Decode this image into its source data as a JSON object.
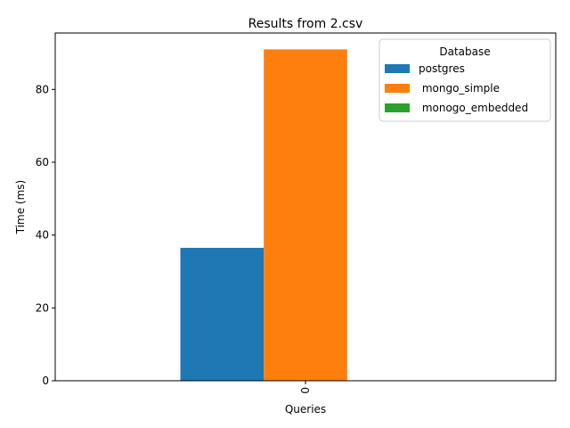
{
  "chart_data": {
    "type": "bar",
    "title": "Results from 2.csv",
    "xlabel": "Queries",
    "ylabel": "Time (ms)",
    "categories": [
      "0"
    ],
    "ylim": [
      0,
      95.5
    ],
    "yticks": [
      0,
      20,
      40,
      60,
      80
    ],
    "grid": false,
    "legend": {
      "title": "Database",
      "placement": "top-right"
    },
    "series": [
      {
        "name": "postgres",
        "color": "#1f77b4",
        "values": [
          36.5
        ]
      },
      {
        "name": " mongo_simple",
        "color": "#ff7f0e",
        "values": [
          91.0
        ]
      },
      {
        "name": " monogo_embedded",
        "color": "#2ca02c",
        "values": [
          0
        ]
      }
    ]
  }
}
